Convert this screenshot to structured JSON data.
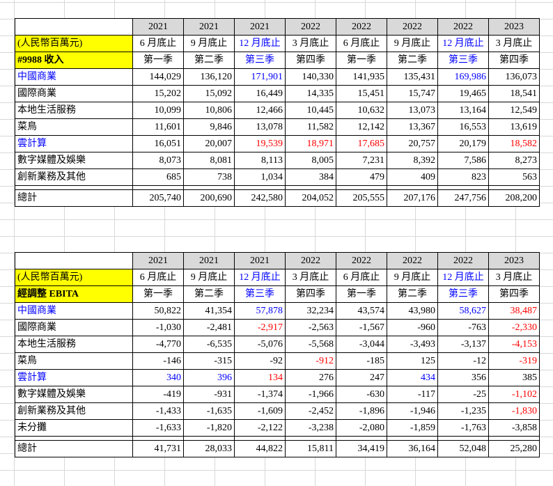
{
  "years": [
    "2021",
    "2021",
    "2021",
    "2022",
    "2022",
    "2022",
    "2022",
    "2023"
  ],
  "periods": [
    "6 月底止",
    "9 月底止",
    "12 月底止",
    "3 月底止",
    "6 月底止",
    "9 月底止",
    "12 月底止",
    "3 月底止"
  ],
  "quarters": [
    "第一季",
    "第二季",
    "第三季",
    "第四季",
    "第一季",
    "第二季",
    "第三季",
    "第四季"
  ],
  "unit_label": "(人民幣百萬元)",
  "colors": {
    "blue": "#0000ff",
    "red": "#ff0000",
    "header_gray": "#d9d9d9",
    "highlight_yellow": "#ffff00"
  },
  "revenue_table": {
    "title": "#9988 收入",
    "rows": [
      {
        "label": "中國商業",
        "values": [
          "144,029",
          "136,120",
          "171,901",
          "140,330",
          "141,935",
          "135,431",
          "169,986",
          "136,073"
        ]
      },
      {
        "label": "國際商業",
        "values": [
          "15,202",
          "15,092",
          "16,449",
          "14,335",
          "15,451",
          "15,747",
          "19,465",
          "18,541"
        ]
      },
      {
        "label": "本地生活服務",
        "values": [
          "10,099",
          "10,806",
          "12,466",
          "10,445",
          "10,632",
          "13,073",
          "13,164",
          "12,549"
        ]
      },
      {
        "label": "菜鳥",
        "values": [
          "11,601",
          "9,846",
          "13,078",
          "11,582",
          "12,142",
          "13,367",
          "16,553",
          "13,619"
        ]
      },
      {
        "label": "雲計算",
        "values": [
          "16,051",
          "20,007",
          "19,539",
          "18,971",
          "17,685",
          "20,757",
          "20,179",
          "18,582"
        ]
      },
      {
        "label": "數字媒體及娛樂",
        "values": [
          "8,073",
          "8,081",
          "8,113",
          "8,005",
          "7,231",
          "8,392",
          "7,586",
          "8,273"
        ]
      },
      {
        "label": "創新業務及其他",
        "values": [
          "685",
          "738",
          "1,034",
          "384",
          "479",
          "409",
          "823",
          "563"
        ]
      }
    ],
    "total": {
      "label": "總計",
      "values": [
        "205,740",
        "200,690",
        "242,580",
        "204,052",
        "205,555",
        "207,176",
        "247,756",
        "208,200"
      ]
    }
  },
  "ebita_table": {
    "title": "經調整 EBITA",
    "rows": [
      {
        "label": "中國商業",
        "values": [
          "50,822",
          "41,354",
          "57,878",
          "32,234",
          "43,574",
          "43,980",
          "58,627",
          "38,487"
        ]
      },
      {
        "label": "國際商業",
        "values": [
          "-1,030",
          "-2,481",
          "-2,917",
          "-2,563",
          "-1,567",
          "-960",
          "-763",
          "-2,330"
        ]
      },
      {
        "label": "本地生活服務",
        "values": [
          "-4,770",
          "-6,535",
          "-5,076",
          "-5,568",
          "-3,044",
          "-3,493",
          "-3,137",
          "-4,153"
        ]
      },
      {
        "label": "菜鳥",
        "values": [
          "-146",
          "-315",
          "-92",
          "-912",
          "-185",
          "125",
          "-12",
          "-319"
        ]
      },
      {
        "label": "雲計算",
        "values": [
          "340",
          "396",
          "134",
          "276",
          "247",
          "434",
          "356",
          "385"
        ]
      },
      {
        "label": "數字媒體及娛樂",
        "values": [
          "-419",
          "-931",
          "-1,374",
          "-1,966",
          "-630",
          "-117",
          "-25",
          "-1,102"
        ]
      },
      {
        "label": "創新業務及其他",
        "values": [
          "-1,433",
          "-1,635",
          "-1,609",
          "-2,452",
          "-1,896",
          "-1,946",
          "-1,235",
          "-1,830"
        ]
      },
      {
        "label": "未分攤",
        "values": [
          "-1,633",
          "-1,820",
          "-2,122",
          "-3,238",
          "-2,080",
          "-1,859",
          "-1,763",
          "-3,858"
        ]
      }
    ],
    "total": {
      "label": "總計",
      "values": [
        "41,731",
        "28,033",
        "44,822",
        "15,811",
        "34,419",
        "36,164",
        "52,048",
        "25,280"
      ]
    }
  }
}
